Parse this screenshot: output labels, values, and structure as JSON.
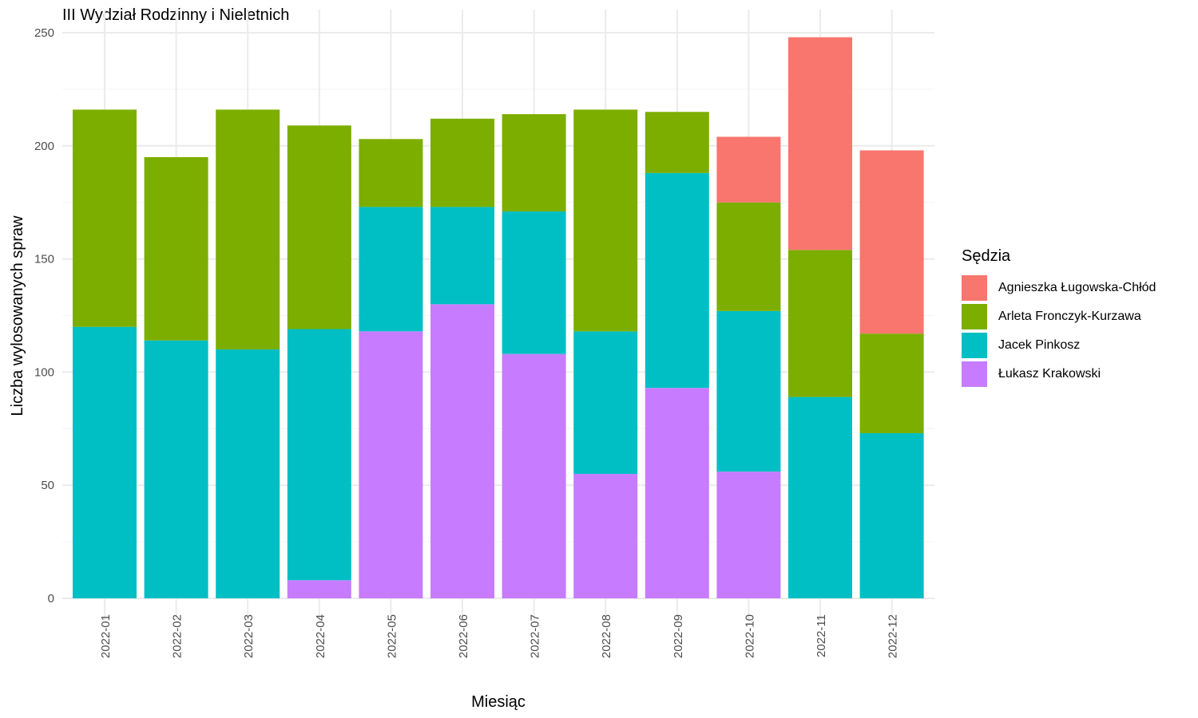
{
  "chart_data": {
    "type": "bar",
    "stacked": true,
    "title": "III Wydział Rodzinny i Nieletnich",
    "xlabel": "Miesiąc",
    "ylabel": "Liczba wylosowanych spraw",
    "ylim": [
      0,
      250
    ],
    "yticks": [
      0,
      50,
      100,
      150,
      200,
      250
    ],
    "grid": true,
    "legend_title": "Sędzia",
    "legend_position": "right",
    "categories": [
      "2022-01",
      "2022-02",
      "2022-03",
      "2022-04",
      "2022-05",
      "2022-06",
      "2022-07",
      "2022-08",
      "2022-09",
      "2022-10",
      "2022-11",
      "2022-12"
    ],
    "series": [
      {
        "name": "Agnieszka Ługowska-Chłód",
        "color": "#F8766D",
        "values": [
          0,
          0,
          0,
          0,
          0,
          0,
          0,
          0,
          0,
          29,
          94,
          81
        ]
      },
      {
        "name": "Arleta Fronczyk-Kurzawa",
        "color": "#7CAE00",
        "values": [
          96,
          81,
          106,
          90,
          30,
          39,
          43,
          98,
          27,
          48,
          65,
          44
        ]
      },
      {
        "name": "Jacek Pinkosz",
        "color": "#00BFC4",
        "values": [
          120,
          114,
          110,
          111,
          55,
          43,
          63,
          63,
          95,
          71,
          89,
          73
        ]
      },
      {
        "name": "Łukasz Krakowski",
        "color": "#C77CFF",
        "values": [
          0,
          0,
          0,
          8,
          118,
          130,
          108,
          55,
          93,
          56,
          0,
          0
        ]
      }
    ]
  }
}
